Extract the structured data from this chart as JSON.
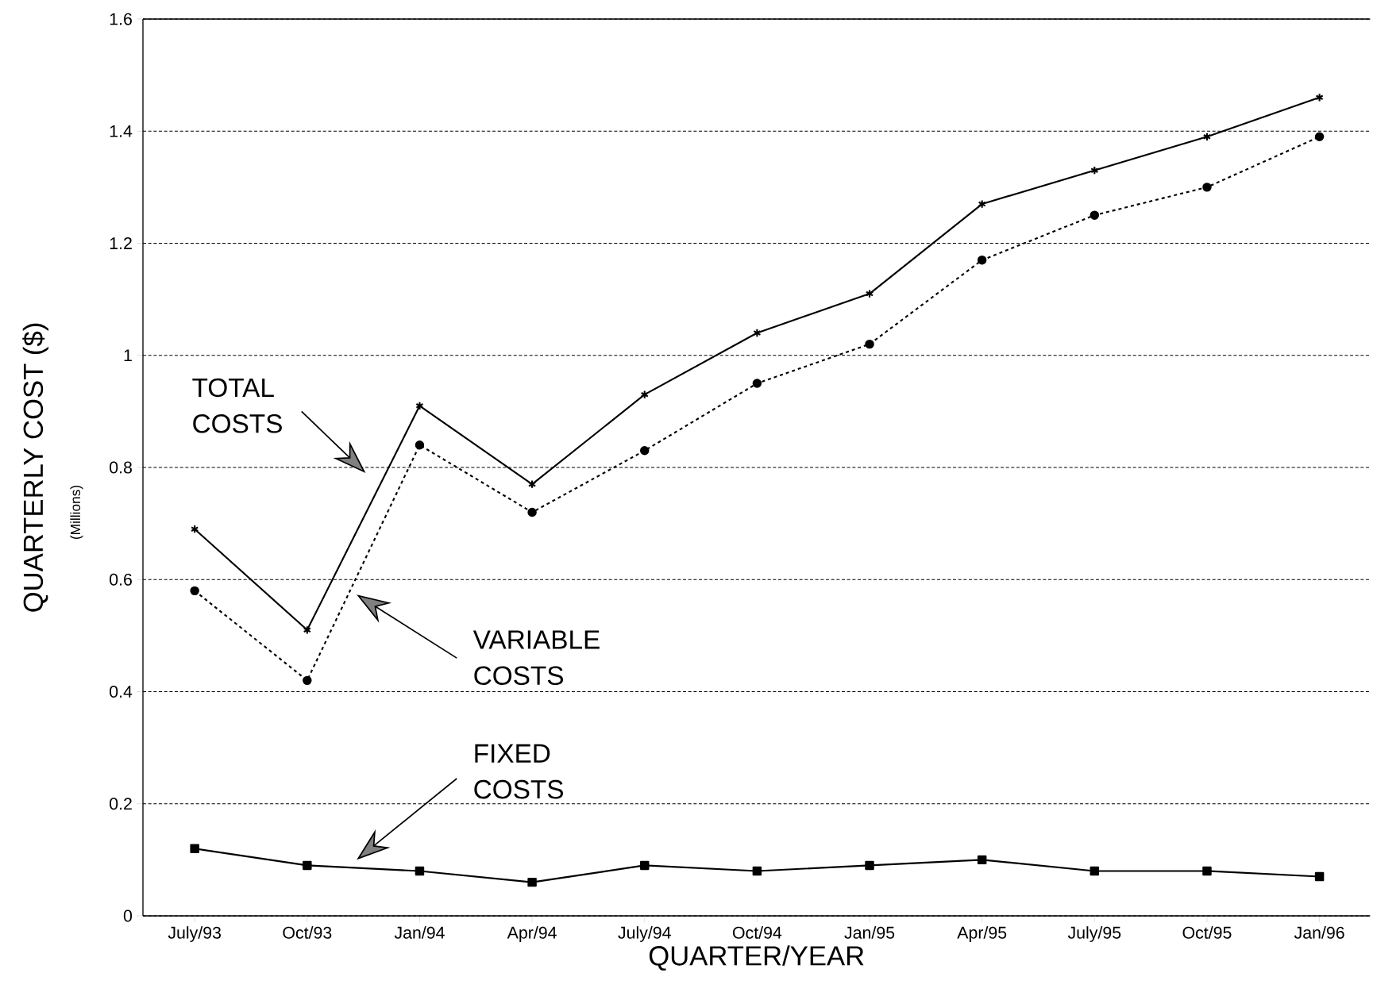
{
  "chart_data": {
    "type": "line",
    "xlabel": "QUARTER/YEAR",
    "ylabel": "QUARTERLY COST ($)",
    "categories": [
      "July/93",
      "Oct/93",
      "Jan/94",
      "Apr/94",
      "July/94",
      "Oct/94",
      "Jan/95",
      "Apr/95",
      "July/95",
      "Oct/95",
      "Jan/96"
    ],
    "series": [
      {
        "color": "#000000",
        "marker": "cross",
        "line_style": "solid",
        "values": [
          0.69,
          0.51,
          0.91,
          0.77,
          0.93,
          1.04,
          1.11,
          1.27,
          1.33,
          1.39,
          1.46
        ]
      },
      {
        "color": "#000000",
        "marker": "circle",
        "line_style": "dashed",
        "values": [
          0.58,
          0.42,
          0.84,
          0.72,
          0.83,
          0.95,
          1.02,
          1.17,
          1.25,
          1.3,
          1.39
        ]
      },
      {
        "color": "#000000",
        "marker": "square",
        "line_style": "solid",
        "values": [
          0.12,
          0.09,
          0.08,
          0.06,
          0.09,
          0.08,
          0.09,
          0.1,
          0.08,
          0.08,
          0.07
        ]
      }
    ],
    "ylim": [
      0,
      1.6
    ],
    "yticks": [
      0,
      0.2,
      0.4,
      0.6,
      0.8,
      1,
      1.2,
      1.4,
      1.6
    ],
    "grid": "y",
    "annotations": [
      "(Millions)",
      "TOTAL COSTS",
      "VARIABLE COSTS",
      "FIXED COSTS"
    ]
  }
}
